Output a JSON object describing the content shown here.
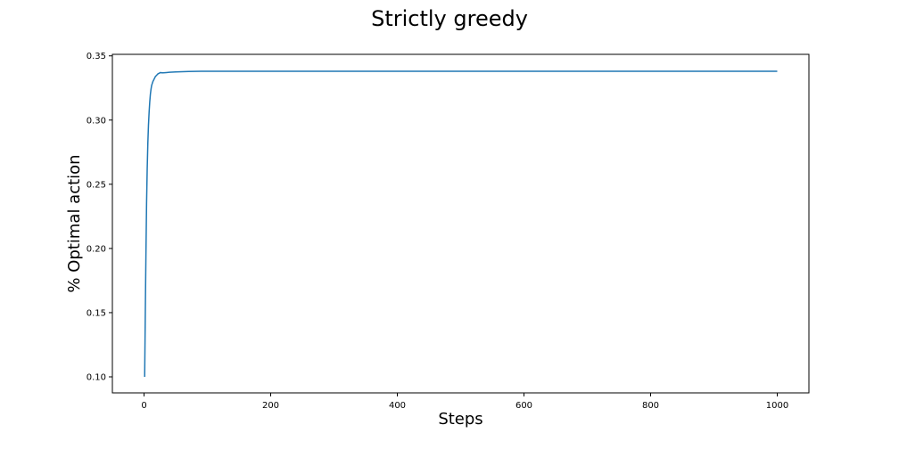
{
  "chart_data": {
    "type": "line",
    "title": "Strictly greedy",
    "xlabel": "Steps",
    "ylabel": "% Optimal action",
    "xlim": [
      -50,
      1050
    ],
    "ylim": [
      0.0875,
      0.3512
    ],
    "xticks": [
      0,
      200,
      400,
      600,
      800,
      1000
    ],
    "yticks": [
      0.1,
      0.15,
      0.2,
      0.25,
      0.3,
      0.35
    ],
    "xtick_labels": [
      "0",
      "200",
      "400",
      "600",
      "800",
      "1000"
    ],
    "ytick_labels": [
      "0.10",
      "0.15",
      "0.20",
      "0.25",
      "0.30",
      "0.35"
    ],
    "grid": false,
    "line_color": "#1f77b4",
    "series": [
      {
        "x": [
          1,
          2,
          3,
          4,
          5,
          6,
          7,
          8,
          9,
          10,
          11,
          12,
          14,
          16,
          18,
          20,
          22,
          24,
          26,
          28,
          30,
          35,
          40,
          50,
          60,
          70,
          80,
          90,
          100,
          150,
          200,
          300,
          400,
          500,
          600,
          700,
          800,
          900,
          1000
        ],
        "y": [
          0.1,
          0.15,
          0.195,
          0.235,
          0.262,
          0.282,
          0.296,
          0.306,
          0.314,
          0.32,
          0.324,
          0.327,
          0.33,
          0.332,
          0.334,
          0.335,
          0.336,
          0.3365,
          0.337,
          0.3368,
          0.3368,
          0.337,
          0.3372,
          0.3375,
          0.3377,
          0.3378,
          0.3379,
          0.338,
          0.338,
          0.338,
          0.338,
          0.338,
          0.338,
          0.338,
          0.338,
          0.338,
          0.338,
          0.338,
          0.338
        ]
      }
    ]
  }
}
